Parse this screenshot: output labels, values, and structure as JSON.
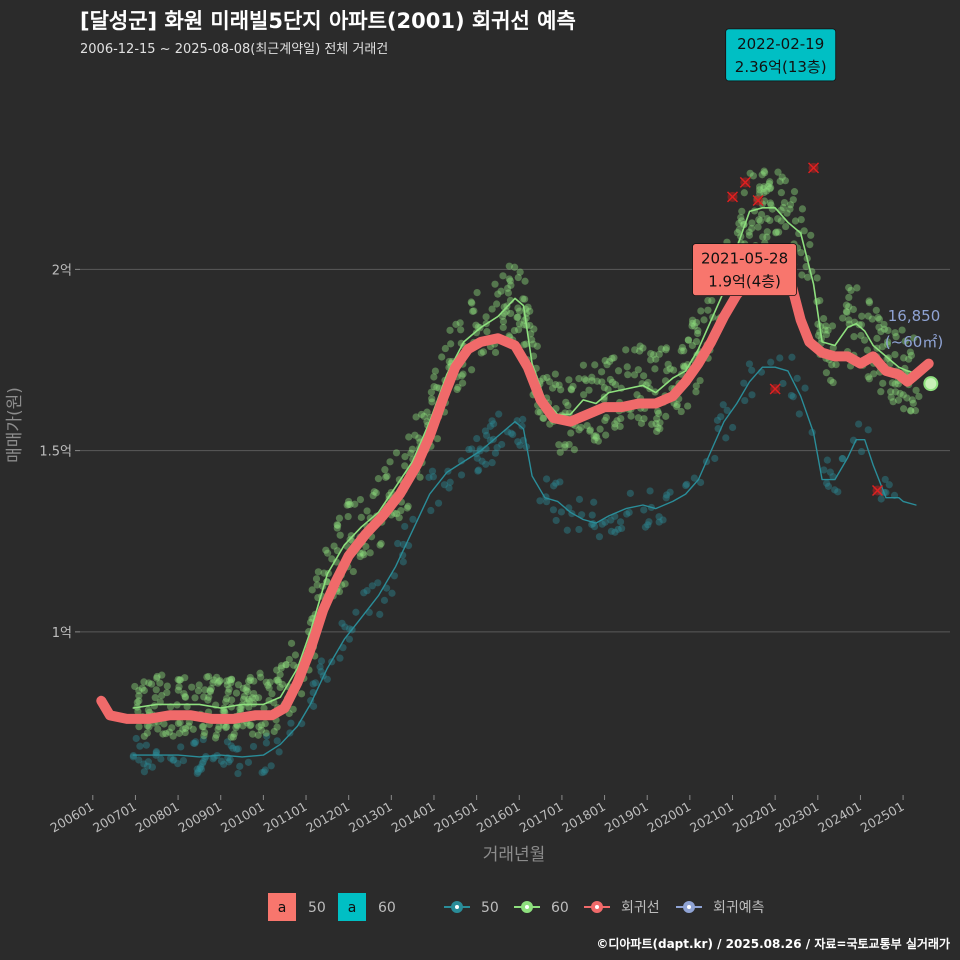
{
  "header": {
    "title": "[달성군] 화원 미래빌5단지 아파트(2001) 회귀선 예측",
    "subtitle": "2006-12-15 ~ 2025-08-08(최근계약일) 전체 거래건"
  },
  "footer": "©디아파트(dapt.kr) / 2025.08.26 / 자료=국토교통부 실거래가",
  "chart_data": {
    "type": "scatter",
    "xlabel": "거래년월",
    "ylabel": "매매가(원)",
    "x_ticks": [
      "200601",
      "200701",
      "200801",
      "200901",
      "201001",
      "201101",
      "201201",
      "201301",
      "201401",
      "201501",
      "201601",
      "201701",
      "201801",
      "201901",
      "202001",
      "202101",
      "202201",
      "202301",
      "202401",
      "202501"
    ],
    "y_ticks": [
      {
        "value": 1.0,
        "label": "1억"
      },
      {
        "value": 1.5,
        "label": "1.5억"
      },
      {
        "value": 2.0,
        "label": "2억"
      }
    ],
    "ylim": [
      0.55,
      2.55
    ],
    "xlim": [
      2005.7,
      2026.1
    ],
    "grid": "horizontal",
    "colors": {
      "s50": "#2a8d99",
      "s60": "#8ee07e",
      "regression": "#f06a6a",
      "prediction": "#8fa3d4",
      "label50": "#f8766d",
      "label60": "#00bfc4"
    },
    "series": [
      {
        "name": "50",
        "type": "line",
        "color": "#2a8d99",
        "points": [
          [
            2006.95,
            0.66
          ],
          [
            2007.5,
            0.66
          ],
          [
            2008.0,
            0.66
          ],
          [
            2008.5,
            0.655
          ],
          [
            2009.0,
            0.66
          ],
          [
            2009.5,
            0.655
          ],
          [
            2010.0,
            0.66
          ],
          [
            2010.4,
            0.69
          ],
          [
            2010.8,
            0.74
          ],
          [
            2011.1,
            0.8
          ],
          [
            2011.5,
            0.9
          ],
          [
            2011.9,
            0.98
          ],
          [
            2012.3,
            1.04
          ],
          [
            2012.7,
            1.1
          ],
          [
            2013.1,
            1.18
          ],
          [
            2013.5,
            1.28
          ],
          [
            2013.9,
            1.38
          ],
          [
            2014.3,
            1.44
          ],
          [
            2014.7,
            1.47
          ],
          [
            2015.1,
            1.5
          ],
          [
            2015.5,
            1.54
          ],
          [
            2015.9,
            1.58
          ],
          [
            2016.1,
            1.56
          ],
          [
            2016.3,
            1.43
          ],
          [
            2016.6,
            1.37
          ],
          [
            2016.9,
            1.36
          ],
          [
            2017.2,
            1.33
          ],
          [
            2017.5,
            1.31
          ],
          [
            2017.8,
            1.3
          ],
          [
            2018.1,
            1.32
          ],
          [
            2018.5,
            1.34
          ],
          [
            2018.9,
            1.35
          ],
          [
            2019.2,
            1.34
          ],
          [
            2019.6,
            1.36
          ],
          [
            2019.9,
            1.38
          ],
          [
            2020.2,
            1.42
          ],
          [
            2020.5,
            1.5
          ],
          [
            2020.8,
            1.58
          ],
          [
            2021.1,
            1.63
          ],
          [
            2021.4,
            1.69
          ],
          [
            2021.7,
            1.73
          ],
          [
            2022.0,
            1.73
          ],
          [
            2022.3,
            1.72
          ],
          [
            2022.6,
            1.65
          ],
          [
            2022.9,
            1.55
          ],
          [
            2023.1,
            1.42
          ],
          [
            2023.4,
            1.42
          ],
          [
            2023.7,
            1.48
          ],
          [
            2023.9,
            1.53
          ],
          [
            2024.1,
            1.53
          ],
          [
            2024.3,
            1.46
          ],
          [
            2024.6,
            1.37
          ],
          [
            2024.9,
            1.37
          ],
          [
            2025.0,
            1.36
          ],
          [
            2025.3,
            1.35
          ]
        ]
      },
      {
        "name": "60",
        "type": "line",
        "color": "#8ee07e",
        "points": [
          [
            2006.95,
            0.79
          ],
          [
            2007.5,
            0.8
          ],
          [
            2008.0,
            0.8
          ],
          [
            2008.5,
            0.8
          ],
          [
            2009.0,
            0.79
          ],
          [
            2009.5,
            0.8
          ],
          [
            2010.0,
            0.8
          ],
          [
            2010.4,
            0.82
          ],
          [
            2010.8,
            0.9
          ],
          [
            2011.1,
            1.0
          ],
          [
            2011.5,
            1.16
          ],
          [
            2011.9,
            1.24
          ],
          [
            2012.3,
            1.29
          ],
          [
            2012.7,
            1.33
          ],
          [
            2013.1,
            1.4
          ],
          [
            2013.5,
            1.47
          ],
          [
            2013.9,
            1.58
          ],
          [
            2014.3,
            1.71
          ],
          [
            2014.7,
            1.8
          ],
          [
            2015.1,
            1.84
          ],
          [
            2015.5,
            1.87
          ],
          [
            2015.9,
            1.92
          ],
          [
            2016.1,
            1.9
          ],
          [
            2016.3,
            1.74
          ],
          [
            2016.6,
            1.64
          ],
          [
            2016.9,
            1.6
          ],
          [
            2017.2,
            1.6
          ],
          [
            2017.5,
            1.64
          ],
          [
            2017.8,
            1.63
          ],
          [
            2018.1,
            1.66
          ],
          [
            2018.5,
            1.67
          ],
          [
            2018.9,
            1.68
          ],
          [
            2019.2,
            1.66
          ],
          [
            2019.6,
            1.7
          ],
          [
            2019.9,
            1.72
          ],
          [
            2020.2,
            1.78
          ],
          [
            2020.5,
            1.86
          ],
          [
            2020.8,
            1.94
          ],
          [
            2021.1,
            2.06
          ],
          [
            2021.4,
            2.16
          ],
          [
            2021.7,
            2.17
          ],
          [
            2022.0,
            2.17
          ],
          [
            2022.3,
            2.13
          ],
          [
            2022.6,
            2.1
          ],
          [
            2022.9,
            1.96
          ],
          [
            2023.1,
            1.8
          ],
          [
            2023.4,
            1.79
          ],
          [
            2023.7,
            1.84
          ],
          [
            2023.9,
            1.85
          ],
          [
            2024.1,
            1.83
          ],
          [
            2024.3,
            1.79
          ],
          [
            2024.6,
            1.76
          ],
          [
            2024.9,
            1.73
          ],
          [
            2025.1,
            1.72
          ],
          [
            2025.4,
            1.71
          ]
        ]
      },
      {
        "name": "회귀선",
        "type": "line",
        "color": "#f06a6a",
        "points": [
          [
            2006.2,
            0.81
          ],
          [
            2006.4,
            0.77
          ],
          [
            2006.8,
            0.76
          ],
          [
            2007.3,
            0.76
          ],
          [
            2007.8,
            0.77
          ],
          [
            2008.3,
            0.77
          ],
          [
            2008.8,
            0.76
          ],
          [
            2009.3,
            0.76
          ],
          [
            2009.8,
            0.77
          ],
          [
            2010.2,
            0.77
          ],
          [
            2010.5,
            0.79
          ],
          [
            2010.8,
            0.86
          ],
          [
            2011.1,
            0.95
          ],
          [
            2011.4,
            1.06
          ],
          [
            2011.7,
            1.14
          ],
          [
            2012.0,
            1.21
          ],
          [
            2012.4,
            1.27
          ],
          [
            2012.8,
            1.32
          ],
          [
            2013.2,
            1.38
          ],
          [
            2013.6,
            1.46
          ],
          [
            2013.9,
            1.54
          ],
          [
            2014.2,
            1.64
          ],
          [
            2014.5,
            1.73
          ],
          [
            2014.8,
            1.78
          ],
          [
            2015.1,
            1.8
          ],
          [
            2015.5,
            1.81
          ],
          [
            2015.9,
            1.79
          ],
          [
            2016.2,
            1.73
          ],
          [
            2016.5,
            1.64
          ],
          [
            2016.8,
            1.59
          ],
          [
            2017.2,
            1.58
          ],
          [
            2017.6,
            1.6
          ],
          [
            2018.0,
            1.62
          ],
          [
            2018.4,
            1.62
          ],
          [
            2018.8,
            1.63
          ],
          [
            2019.2,
            1.63
          ],
          [
            2019.6,
            1.65
          ],
          [
            2019.9,
            1.69
          ],
          [
            2020.2,
            1.74
          ],
          [
            2020.5,
            1.8
          ],
          [
            2020.8,
            1.87
          ],
          [
            2021.1,
            1.93
          ],
          [
            2021.4,
            1.97
          ],
          [
            2021.7,
            2.02
          ],
          [
            2022.0,
            2.05
          ],
          [
            2022.2,
            2.04
          ],
          [
            2022.4,
            1.95
          ],
          [
            2022.6,
            1.86
          ],
          [
            2022.8,
            1.8
          ],
          [
            2023.1,
            1.77
          ],
          [
            2023.4,
            1.76
          ],
          [
            2023.7,
            1.76
          ],
          [
            2024.0,
            1.74
          ],
          [
            2024.3,
            1.76
          ],
          [
            2024.6,
            1.72
          ],
          [
            2024.9,
            1.71
          ],
          [
            2025.1,
            1.69
          ],
          [
            2025.3,
            1.71
          ],
          [
            2025.5,
            1.73
          ],
          [
            2025.6,
            1.74
          ]
        ]
      }
    ],
    "scatter_series": [
      {
        "name": "50",
        "color": "#2a8d99",
        "band": "50"
      },
      {
        "name": "60",
        "color": "#8ee07e",
        "band": "60"
      }
    ],
    "outliers": [
      {
        "x": 2021.0,
        "y": 2.2
      },
      {
        "x": 2021.3,
        "y": 2.24
      },
      {
        "x": 2021.6,
        "y": 2.19
      },
      {
        "x": 2022.9,
        "y": 2.28
      },
      {
        "x": 2022.0,
        "y": 1.67
      },
      {
        "x": 2024.4,
        "y": 1.39
      }
    ],
    "annotations": [
      {
        "date": "2022-02-19",
        "value": "2.36억(13층)",
        "x": 2022.13,
        "y": 2.36,
        "color": "#00bfc4"
      },
      {
        "date": "2021-05-28",
        "value": "1.9억(4층)",
        "x": 2021.4,
        "y": 1.9,
        "color": "#f8766d"
      }
    ],
    "prediction": {
      "value": "16,850",
      "area": "(~60㎡)",
      "x": 2025.65,
      "y": 1.685
    },
    "legend": {
      "label_items": [
        {
          "key": "a",
          "name": "50",
          "color": "#f8766d"
        },
        {
          "key": "a",
          "name": "60",
          "color": "#00bfc4"
        }
      ],
      "line_items": [
        {
          "name": "50",
          "color": "#2a8d99"
        },
        {
          "name": "60",
          "color": "#8ee07e"
        },
        {
          "name": "회귀선",
          "color": "#f06a6a"
        },
        {
          "name": "회귀예측",
          "color": "#8fa3d4"
        }
      ],
      "position": "bottom"
    }
  }
}
